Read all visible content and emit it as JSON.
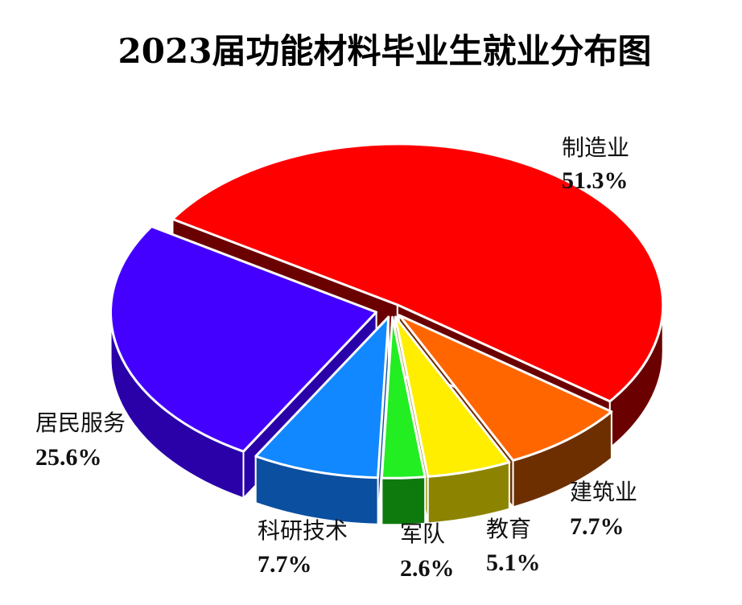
{
  "chart_data": {
    "type": "pie",
    "title": "2023届功能材料毕业生就业分布图",
    "unit": "%",
    "slices": [
      {
        "label": "制造业",
        "value": 51.3,
        "value_label": "51.3%",
        "color": "#FF0000",
        "side_color": "#6B0000"
      },
      {
        "label": "建筑业",
        "value": 7.7,
        "value_label": "7.7%",
        "color": "#FF6600",
        "side_color": "#6E2F00"
      },
      {
        "label": "教育",
        "value": 5.1,
        "value_label": "5.1%",
        "color": "#FFEE00",
        "side_color": "#8C8400"
      },
      {
        "label": "军队",
        "value": 2.6,
        "value_label": "2.6%",
        "color": "#22EE22",
        "side_color": "#0E7A0E"
      },
      {
        "label": "科研技术",
        "value": 7.7,
        "value_label": "7.7%",
        "color": "#1188FF",
        "side_color": "#0A4FA0"
      },
      {
        "label": "居民服务",
        "value": 25.6,
        "value_label": "25.6%",
        "color": "#4400FF",
        "side_color": "#2A00A8"
      }
    ]
  }
}
